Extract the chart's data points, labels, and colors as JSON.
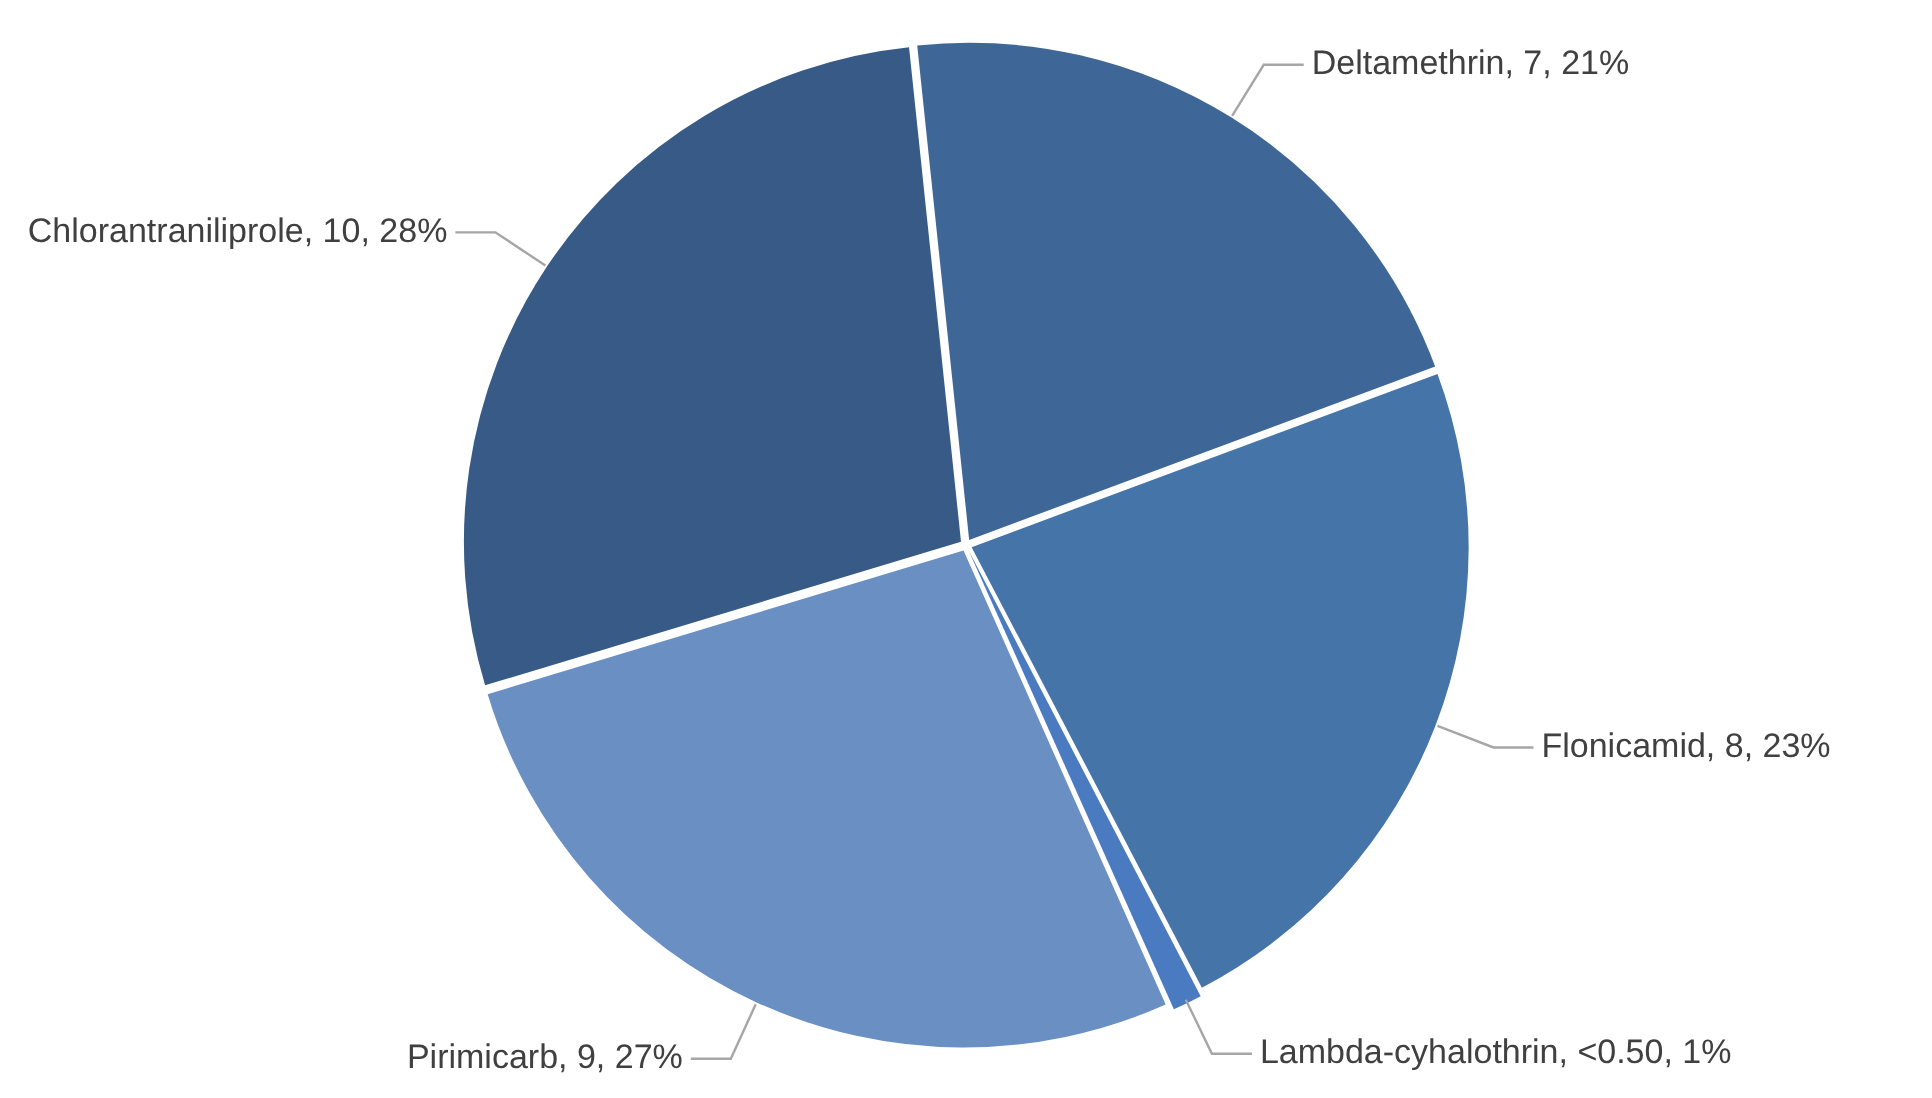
{
  "chart_data": {
    "type": "pie",
    "categories": [
      "Deltamethrin",
      "Flonicamid",
      "Lambda-cyhalothrin",
      "Pirimicarb",
      "Chlorantraniliprole"
    ],
    "values": [
      21,
      23,
      1,
      27,
      28
    ],
    "value_labels": [
      "7, 21%",
      "8, 23%",
      "<0.50, 1%",
      "9, 27%",
      "10, 28%"
    ],
    "colors": [
      "#3e6797",
      "#4574a8",
      "#4a7bc0",
      "#6a8fc3",
      "#375a86"
    ],
    "legend": false
  }
}
